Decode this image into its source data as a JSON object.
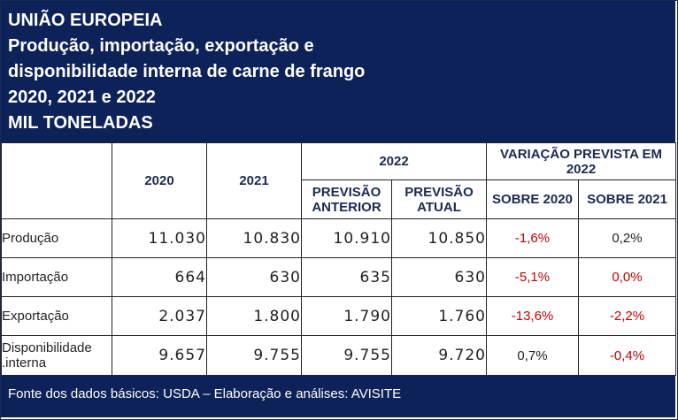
{
  "header": {
    "lines": [
      "UNIÃO EUROPEIA",
      "Produção, importação, exportação e",
      "disponibilidade interna de carne de frango",
      "2020, 2021 e 2022",
      "MIL TONELADAS"
    ]
  },
  "table": {
    "col_2020": "2020",
    "col_2021": "2021",
    "col_2022": "2022",
    "col_variacao": "VARIAÇÃO PREVISTA EM 2022",
    "sub_previsao_anterior": "PREVISÃO ANTERIOR",
    "sub_previsao_atual": "PREVISÃO ATUAL",
    "sub_sobre_2020": "SOBRE 2020",
    "sub_sobre_2021": "SOBRE 2021",
    "rows": [
      {
        "label": "Produção",
        "v2020": "11.030",
        "v2021": "10.830",
        "prev_ant": "10.910",
        "prev_atual": "10.850",
        "var2020": "-1,6%",
        "var2021": "0,2%"
      },
      {
        "label": "Importação",
        "v2020": "664",
        "v2021": "630",
        "prev_ant": "635",
        "prev_atual": "630",
        "var2020": "-5,1%",
        "var2021": "0,0%"
      },
      {
        "label": "Exportação",
        "v2020": "2.037",
        "v2021": "1.800",
        "prev_ant": "1.790",
        "prev_atual": "1.760",
        "var2020": "-13,6%",
        "var2021": "-2,2%"
      },
      {
        "label": "Disponibilidade .interna",
        "v2020": "9.657",
        "v2021": "9.755",
        "prev_ant": "9.755",
        "prev_atual": "9.720",
        "var2020": "0,7%",
        "var2021": "-0,4%"
      }
    ]
  },
  "colors": {
    "var2020": [
      "red",
      "red",
      "red",
      "black"
    ],
    "var2021": [
      "black",
      "red",
      "red",
      "red"
    ]
  },
  "footer": {
    "source": "Fonte dos dados básicos: USDA – Elaboração e análises: AVISITE"
  }
}
